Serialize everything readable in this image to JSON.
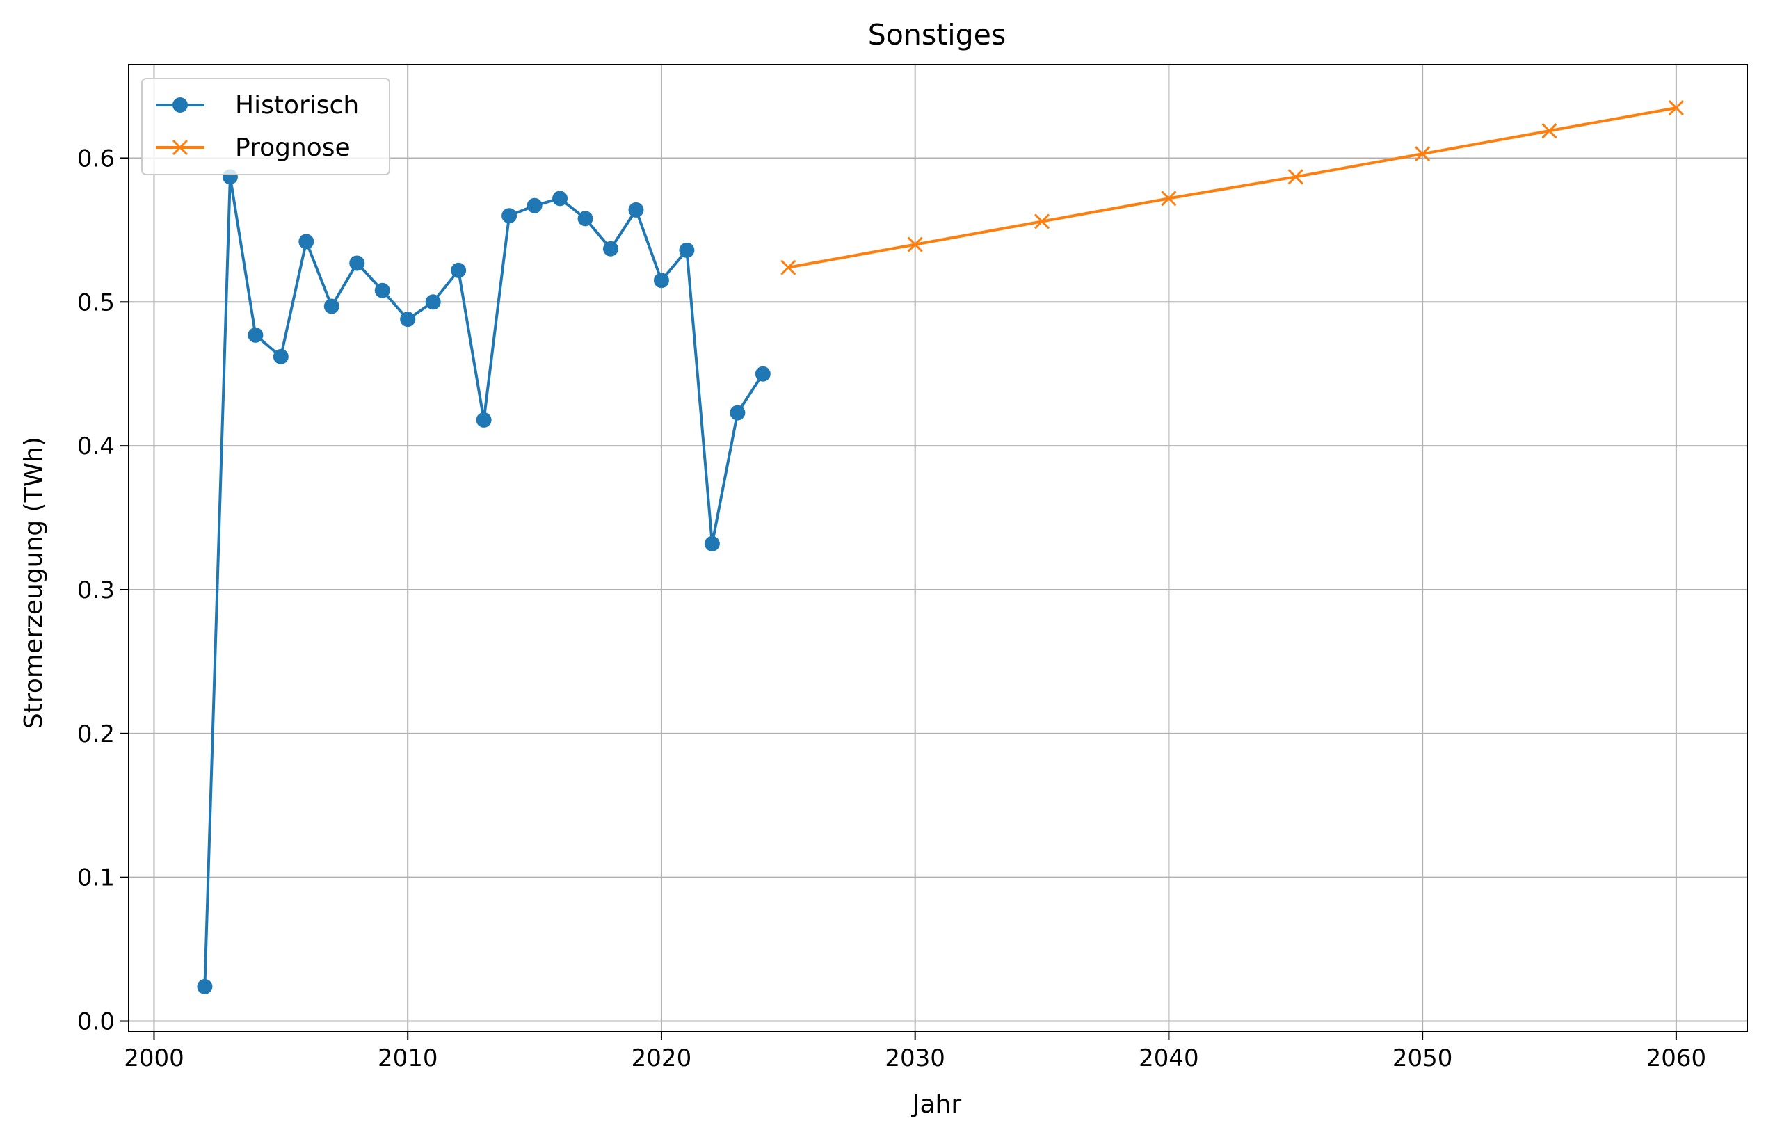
{
  "chart_data": {
    "type": "line",
    "title": "Sonstiges",
    "xlabel": "Jahr",
    "ylabel": "Stromerzeugung (TWh)",
    "xlim": [
      1999.0,
      2062.8
    ],
    "ylim": [
      -0.007,
      0.665
    ],
    "xticks": [
      2000,
      2010,
      2020,
      2030,
      2040,
      2050,
      2060
    ],
    "yticks": [
      0.0,
      0.1,
      0.2,
      0.3,
      0.4,
      0.5,
      0.6
    ],
    "ytick_labels": [
      "0.0",
      "0.1",
      "0.2",
      "0.3",
      "0.4",
      "0.5",
      "0.6"
    ],
    "grid": true,
    "legend_position": "top-left",
    "series": [
      {
        "name": "Historisch",
        "color": "#1f77b4",
        "marker": "circle",
        "x": [
          2002,
          2003,
          2004,
          2005,
          2006,
          2007,
          2008,
          2009,
          2010,
          2011,
          2012,
          2013,
          2014,
          2015,
          2016,
          2017,
          2018,
          2019,
          2020,
          2021,
          2022,
          2023,
          2024
        ],
        "y": [
          0.024,
          0.587,
          0.477,
          0.462,
          0.542,
          0.497,
          0.527,
          0.508,
          0.488,
          0.5,
          0.522,
          0.418,
          0.56,
          0.567,
          0.572,
          0.558,
          0.537,
          0.564,
          0.515,
          0.536,
          0.332,
          0.423,
          0.45
        ]
      },
      {
        "name": "Prognose",
        "color": "#ff7f0e",
        "marker": "x",
        "x": [
          2025,
          2030,
          2035,
          2040,
          2045,
          2050,
          2055,
          2060
        ],
        "y": [
          0.524,
          0.54,
          0.556,
          0.572,
          0.587,
          0.603,
          0.619,
          0.635
        ]
      }
    ]
  }
}
